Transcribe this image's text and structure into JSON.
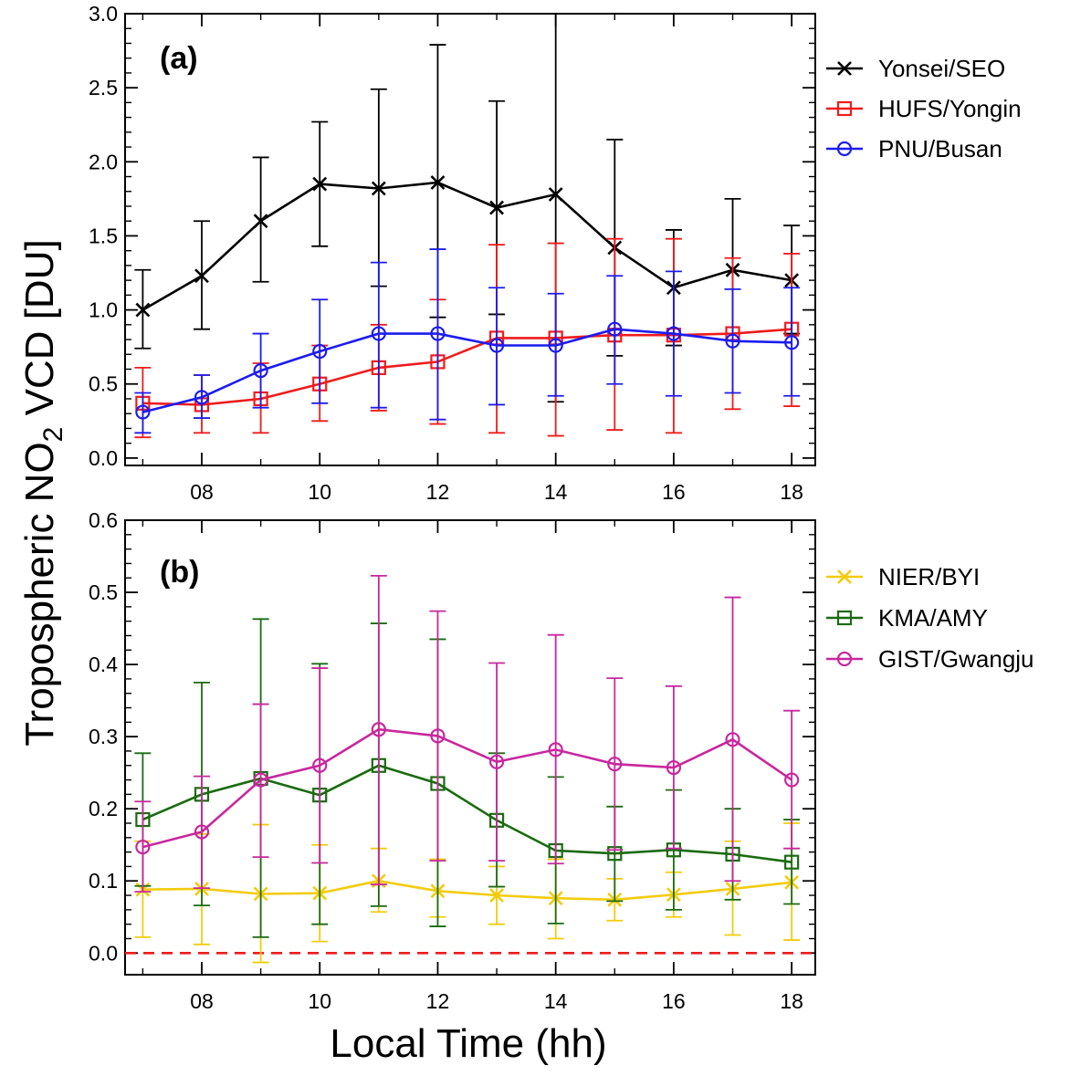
{
  "figure": {
    "ylabel_main": "Tropospheric NO",
    "ylabel_sub": "2",
    "ylabel_rest": " VCD [DU]",
    "xlabel": "Local Time (hh)"
  },
  "chart_data": [
    {
      "type": "line",
      "panel_label": "(a)",
      "x": [
        7,
        8,
        9,
        10,
        11,
        12,
        13,
        14,
        15,
        16,
        17,
        18
      ],
      "xticks": [
        8,
        10,
        12,
        14,
        16,
        18
      ],
      "xtick_labels": [
        "08",
        "10",
        "12",
        "14",
        "16",
        "18"
      ],
      "xlim": [
        6.7,
        18.4
      ],
      "ylim": [
        -0.05,
        3.0
      ],
      "yticks": [
        0.0,
        0.5,
        1.0,
        1.5,
        2.0,
        2.5,
        3.0
      ],
      "ytick_labels": [
        "0.0",
        "0.5",
        "1.0",
        "1.5",
        "2.0",
        "2.5",
        "3.0"
      ],
      "legend_position": "right",
      "series": [
        {
          "name": "Yonsei/SEO",
          "color": "#000000",
          "marker": "x",
          "values": [
            1.0,
            1.23,
            1.6,
            1.85,
            1.82,
            1.86,
            1.69,
            1.78,
            1.42,
            1.15,
            1.27,
            1.2
          ],
          "err_low": [
            0.74,
            0.87,
            1.19,
            1.43,
            1.16,
            0.95,
            0.97,
            0.38,
            0.69,
            0.76,
            0.84,
            0.84
          ],
          "err_high": [
            1.27,
            1.6,
            2.03,
            2.27,
            2.49,
            2.79,
            2.41,
            3.0,
            2.15,
            1.54,
            1.75,
            1.57
          ]
        },
        {
          "name": "HUFS/Yongin",
          "color": "#ee1c1c",
          "marker": "square",
          "values": [
            0.37,
            0.36,
            0.4,
            0.5,
            0.61,
            0.65,
            0.81,
            0.81,
            0.83,
            0.83,
            0.84,
            0.87
          ],
          "err_low": [
            0.14,
            0.17,
            0.17,
            0.25,
            0.32,
            0.23,
            0.17,
            0.15,
            0.19,
            0.17,
            0.33,
            0.35
          ],
          "err_high": [
            0.61,
            0.56,
            0.64,
            0.76,
            0.9,
            1.07,
            1.44,
            1.45,
            1.48,
            1.48,
            1.35,
            1.38
          ]
        },
        {
          "name": "PNU/Busan",
          "color": "#1c1cee",
          "marker": "circle",
          "values": [
            0.31,
            0.41,
            0.59,
            0.72,
            0.84,
            0.84,
            0.76,
            0.76,
            0.87,
            0.84,
            0.79,
            0.78
          ],
          "err_low": [
            0.17,
            0.27,
            0.34,
            0.37,
            0.34,
            0.26,
            0.36,
            0.42,
            0.5,
            0.42,
            0.44,
            0.42
          ],
          "err_high": [
            0.44,
            0.56,
            0.84,
            1.07,
            1.32,
            1.41,
            1.15,
            1.11,
            1.23,
            1.26,
            1.14,
            1.15
          ]
        }
      ]
    },
    {
      "type": "line",
      "panel_label": "(b)",
      "x": [
        7,
        8,
        9,
        10,
        11,
        12,
        13,
        14,
        15,
        16,
        17,
        18
      ],
      "xticks": [
        8,
        10,
        12,
        14,
        16,
        18
      ],
      "xtick_labels": [
        "08",
        "10",
        "12",
        "14",
        "16",
        "18"
      ],
      "xlim": [
        6.7,
        18.4
      ],
      "ylim": [
        -0.03,
        0.6
      ],
      "yticks": [
        0.0,
        0.1,
        0.2,
        0.3,
        0.4,
        0.5,
        0.6
      ],
      "ytick_labels": [
        "0.0",
        "0.1",
        "0.2",
        "0.3",
        "0.4",
        "0.5",
        "0.6"
      ],
      "legend_position": "right",
      "reference_line": {
        "y": 0.0,
        "color": "#ee1c1c",
        "style": "dashed"
      },
      "series": [
        {
          "name": "NIER/BYI",
          "color": "#f2cc0c",
          "marker": "x",
          "values": [
            0.088,
            0.089,
            0.082,
            0.083,
            0.1,
            0.086,
            0.08,
            0.076,
            0.074,
            0.081,
            0.089,
            0.098
          ],
          "err_low": [
            0.022,
            0.012,
            -0.013,
            0.016,
            0.057,
            0.05,
            0.04,
            0.02,
            0.045,
            0.05,
            0.025,
            0.018
          ],
          "err_high": [
            0.155,
            0.165,
            0.178,
            0.15,
            0.145,
            0.13,
            0.12,
            0.13,
            0.103,
            0.112,
            0.155,
            0.18
          ]
        },
        {
          "name": "KMA/AMY",
          "color": "#1a6b10",
          "marker": "square",
          "values": [
            0.185,
            0.22,
            0.242,
            0.219,
            0.26,
            0.235,
            0.184,
            0.142,
            0.138,
            0.143,
            0.137,
            0.126
          ],
          "err_low": [
            0.093,
            0.066,
            0.022,
            0.04,
            0.065,
            0.037,
            0.092,
            0.041,
            0.072,
            0.06,
            0.074,
            0.068
          ],
          "err_high": [
            0.277,
            0.375,
            0.463,
            0.401,
            0.457,
            0.435,
            0.277,
            0.244,
            0.203,
            0.226,
            0.2,
            0.185
          ]
        },
        {
          "name": "GIST/Gwangju",
          "color": "#c8279e",
          "marker": "circle",
          "values": [
            0.147,
            0.168,
            0.24,
            0.26,
            0.31,
            0.301,
            0.265,
            0.282,
            0.262,
            0.257,
            0.296,
            0.24
          ],
          "err_low": [
            0.085,
            0.09,
            0.133,
            0.125,
            0.095,
            0.128,
            0.128,
            0.124,
            0.143,
            0.145,
            0.1,
            0.145
          ],
          "err_high": [
            0.21,
            0.245,
            0.345,
            0.395,
            0.523,
            0.474,
            0.402,
            0.441,
            0.381,
            0.37,
            0.493,
            0.336
          ]
        }
      ]
    }
  ]
}
